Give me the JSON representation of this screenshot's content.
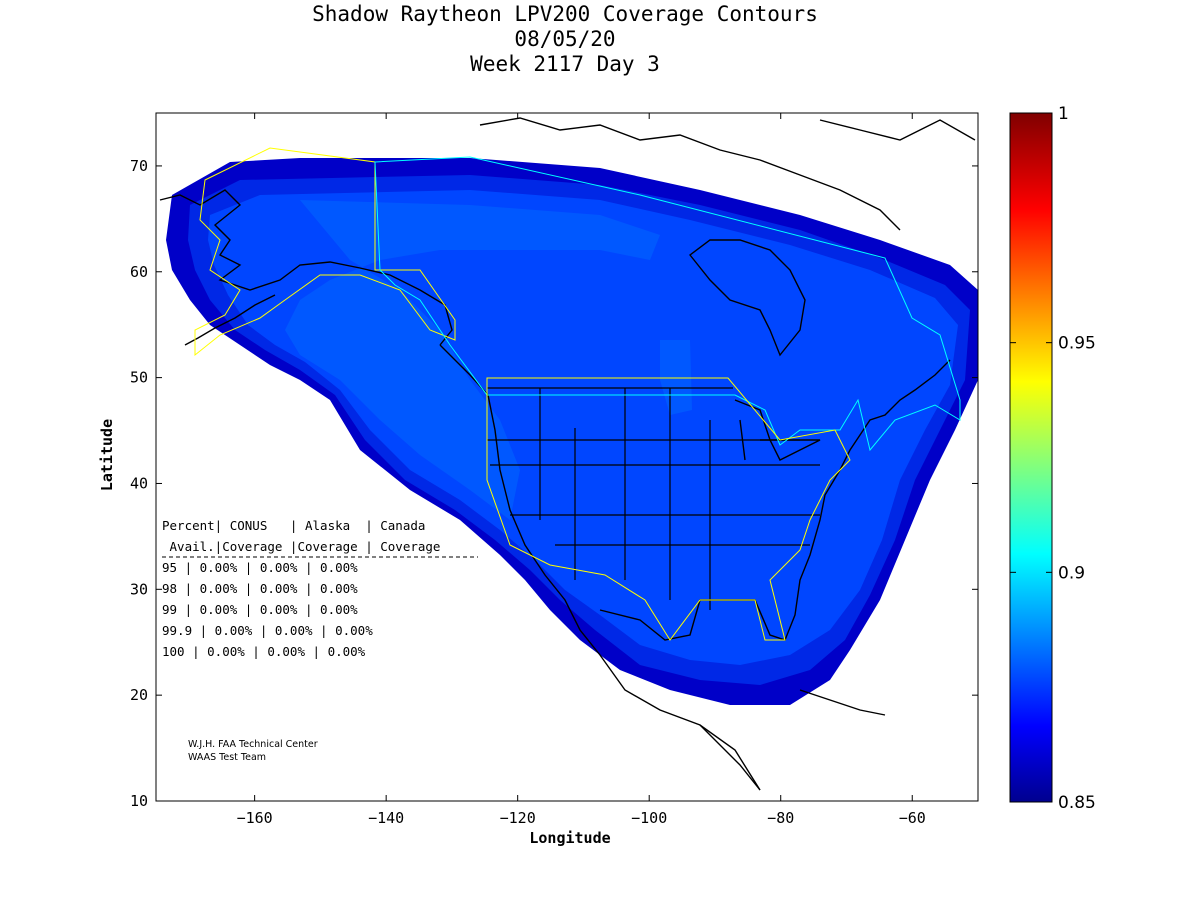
{
  "title": {
    "line1": "Shadow Raytheon LPV200 Coverage Contours",
    "line2": "08/05/20",
    "line3": "Week 2117 Day 3"
  },
  "axes": {
    "xlabel": "Longitude",
    "ylabel": "Latitude",
    "xlim": [
      -175,
      -50
    ],
    "ylim": [
      10,
      75
    ],
    "xticks": [
      -160,
      -140,
      -120,
      -100,
      -80,
      -60
    ],
    "yticks": [
      10,
      20,
      30,
      40,
      50,
      60,
      70
    ]
  },
  "colorbar": {
    "min": 0.85,
    "max": 1,
    "ticks": [
      {
        "value": 1,
        "label": "1"
      },
      {
        "value": 0.95,
        "label": "0.95"
      },
      {
        "value": 0.9,
        "label": "0.9"
      },
      {
        "value": 0.85,
        "label": "0.85"
      }
    ],
    "colormap": "jet"
  },
  "stats_table": {
    "header1": "Percent| CONUS   | Alaska  | Canada",
    "header2": " Avail.|Coverage |Coverage | Coverage",
    "rows": [
      {
        "percent": "95",
        "conus": "0.00%",
        "alaska": "0.00%",
        "canada": "0.00%"
      },
      {
        "percent": "98",
        "conus": "0.00%",
        "alaska": "0.00%",
        "canada": "0.00%"
      },
      {
        "percent": "99",
        "conus": "0.00%",
        "alaska": "0.00%",
        "canada": "0.00%"
      },
      {
        "percent": "99.9",
        "conus": "0.00%",
        "alaska": "0.00%",
        "canada": "0.00%"
      },
      {
        "percent": "100",
        "conus": "0.00%",
        "alaska": "0.00%",
        "canada": "0.00%"
      }
    ]
  },
  "credit": {
    "line1": "W.J.H. FAA Technical Center",
    "line2": "WAAS Test Team"
  },
  "colors": {
    "coverage_dark": "#0000c8",
    "coverage_mid": "#0028e6",
    "coverage_main": "#0046ff",
    "coverage_light": "#0058ff",
    "region_outline_alaska": "#ffff00",
    "region_outline_canada": "#00ffff",
    "coastline": "#000000"
  },
  "chart_data": {
    "type": "heatmap",
    "title": "Shadow Raytheon LPV200 Coverage Contours",
    "xlabel": "Longitude",
    "ylabel": "Latitude",
    "xlim": [
      -175,
      -50
    ],
    "ylim": [
      10,
      75
    ],
    "colorbar_range": [
      0.85,
      1
    ],
    "service_regions": [
      "CONUS",
      "Alaska",
      "Canada"
    ]
  }
}
